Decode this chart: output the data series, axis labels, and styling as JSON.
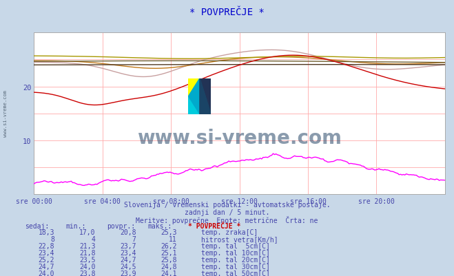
{
  "title": "* POVPREČJE *",
  "background_color": "#c8d8e8",
  "plot_bg_color": "#ffffff",
  "grid_color": "#ffaaaa",
  "xlabel_color": "#4444aa",
  "title_color": "#0000cc",
  "subtitle_lines": [
    "Slovenija / vremenski podatki - avtomatske postaje.",
    "zadnji dan / 5 minut.",
    "Meritve: povprečne  Enote: metrične  Črta: ne"
  ],
  "xtick_labels": [
    "sre 00:00",
    "sre 04:00",
    "sre 08:00",
    "sre 12:00",
    "sre 16:00",
    "sre 20:00"
  ],
  "ylim": [
    0,
    30
  ],
  "series_colors": {
    "temp_zraka": "#cc0000",
    "hitrost_vetra": "#ff00ff",
    "temp_tal_5cm": "#c8a0a0",
    "temp_tal_10cm": "#c07818",
    "temp_tal_20cm": "#a89800",
    "temp_tal_30cm": "#706030",
    "temp_tal_50cm": "#503820"
  },
  "legend_data": [
    {
      "sedaj": "18,3",
      "min": "17,0",
      "povpr": "20,8",
      "maks": "25,3",
      "color": "#cc0000",
      "label": "temp. zraka[C]"
    },
    {
      "sedaj": "8",
      "min": "4",
      "povpr": "7",
      "maks": "11",
      "color": "#ff00ff",
      "label": "hitrost vetra[Km/h]"
    },
    {
      "sedaj": "22,8",
      "min": "21,3",
      "povpr": "23,7",
      "maks": "26,2",
      "color": "#c8a0a0",
      "label": "temp. tal  5cm[C]"
    },
    {
      "sedaj": "23,4",
      "min": "21,8",
      "povpr": "23,4",
      "maks": "25,1",
      "color": "#c07818",
      "label": "temp. tal 10cm[C]"
    },
    {
      "sedaj": "25,2",
      "min": "23,5",
      "povpr": "24,7",
      "maks": "25,8",
      "color": "#a89800",
      "label": "temp. tal 20cm[C]"
    },
    {
      "sedaj": "24,7",
      "min": "24,0",
      "povpr": "24,5",
      "maks": "24,8",
      "color": "#706030",
      "label": "temp. tal 30cm[C]"
    },
    {
      "sedaj": "24,0",
      "min": "23,8",
      "povpr": "23,9",
      "maks": "24,1",
      "color": "#503820",
      "label": "temp. tal 50cm[C]"
    }
  ],
  "watermark": "www.si-vreme.com",
  "watermark_color": "#2a4a6a",
  "left_text": "www.si-vreme.com"
}
